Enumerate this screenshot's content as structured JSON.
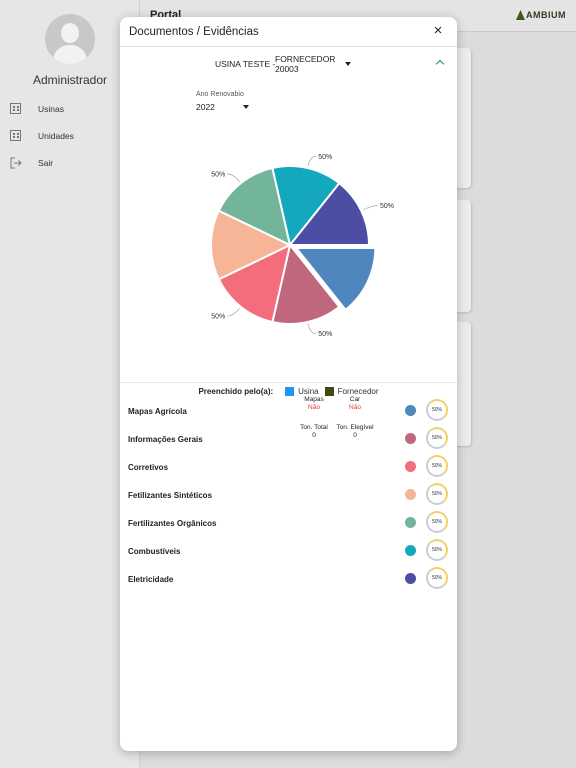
{
  "app": {
    "header_title": "Portal",
    "logo_text": "MBIUM",
    "logo_letter": "A"
  },
  "sidebar": {
    "user_name": "Administrador",
    "items": [
      {
        "label": "Usinas",
        "icon": "building-icon"
      },
      {
        "label": "Unidades",
        "icon": "building-icon"
      },
      {
        "label": "Sair",
        "icon": "logout-icon"
      }
    ]
  },
  "modal": {
    "title": "Documentos / Evidências",
    "close_icon": "×",
    "usina_prefix": "USINA TESTE -",
    "usina_value": "FORNECEDOR 20003",
    "year_label": "Ano Renovabio",
    "year_value": "2022"
  },
  "chart_data": {
    "type": "pie",
    "categories": [
      "Mapas Agrícola",
      "Informações Gerais",
      "Corretivos",
      "Fetilizantes Sintéticos",
      "Fertilizantes Orgânicos",
      "Combustíveis",
      "Eletricidade"
    ],
    "values": [
      1,
      1,
      1,
      1,
      1,
      1,
      1
    ],
    "colors": [
      "#4f86bd",
      "#c0677e",
      "#f46d7c",
      "#f7b597",
      "#72b59a",
      "#13a8be",
      "#4b4ea3"
    ],
    "exploded_index": 0,
    "data_labels": [
      {
        "slice": 0,
        "text": ""
      },
      {
        "slice": 1,
        "text": "50%"
      },
      {
        "slice": 2,
        "text": "50%"
      },
      {
        "slice": 3,
        "text": ""
      },
      {
        "slice": 4,
        "text": "50%"
      },
      {
        "slice": 5,
        "text": "50%"
      },
      {
        "slice": 6,
        "text": "50%"
      }
    ]
  },
  "filled_legend": {
    "title": "Preenchido pelo(a):",
    "items": [
      {
        "label": "Usina",
        "color": "#2196f3"
      },
      {
        "label": "Fornecedor",
        "color": "#3d4a12"
      }
    ]
  },
  "documents": [
    {
      "name": "Mapas Agrícola",
      "color": "#4f86bd",
      "percent": "50%",
      "meta": [
        {
          "label": "Mapas",
          "value": "Não"
        },
        {
          "label": "Car",
          "value": "Não"
        }
      ]
    },
    {
      "name": "Informações Gerais",
      "color": "#c0677e",
      "percent": "50%",
      "meta": [
        {
          "label": "Ton. Total",
          "value": "0"
        },
        {
          "label": "Ton. Elegível",
          "value": "0"
        }
      ]
    },
    {
      "name": "Corretivos",
      "color": "#f46d7c",
      "percent": "50%",
      "meta": []
    },
    {
      "name": "Fetilizantes Sintéticos",
      "color": "#f7b597",
      "percent": "50%",
      "meta": []
    },
    {
      "name": "Fertilizantes Orgânicos",
      "color": "#72b59a",
      "percent": "50%",
      "meta": []
    },
    {
      "name": "Combustíveis",
      "color": "#13a8be",
      "percent": "50%",
      "meta": []
    },
    {
      "name": "Eletricidade",
      "color": "#4b4ea3",
      "percent": "50%",
      "meta": []
    }
  ]
}
